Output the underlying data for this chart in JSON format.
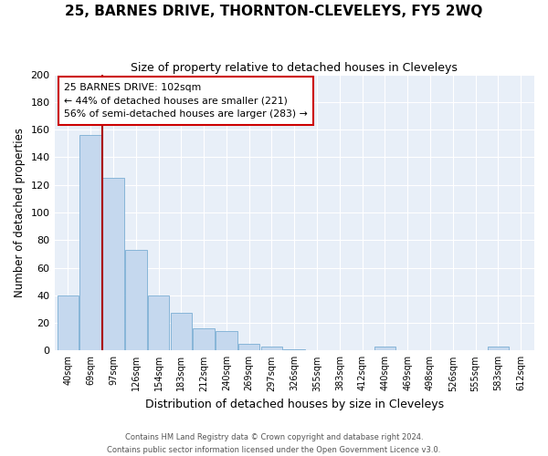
{
  "title": "25, BARNES DRIVE, THORNTON-CLEVELEYS, FY5 2WQ",
  "subtitle": "Size of property relative to detached houses in Cleveleys",
  "xlabel": "Distribution of detached houses by size in Cleveleys",
  "ylabel": "Number of detached properties",
  "bar_color": "#c5d8ee",
  "bar_edge_color": "#7aaed4",
  "background_color": "#ffffff",
  "plot_bg_color": "#e8eff8",
  "grid_color": "#ffffff",
  "categories": [
    "40sqm",
    "69sqm",
    "97sqm",
    "126sqm",
    "154sqm",
    "183sqm",
    "212sqm",
    "240sqm",
    "269sqm",
    "297sqm",
    "326sqm",
    "355sqm",
    "383sqm",
    "412sqm",
    "440sqm",
    "469sqm",
    "498sqm",
    "526sqm",
    "555sqm",
    "583sqm",
    "612sqm"
  ],
  "values": [
    40,
    156,
    125,
    73,
    40,
    27,
    16,
    14,
    5,
    3,
    1,
    0,
    0,
    0,
    3,
    0,
    0,
    0,
    0,
    3,
    0
  ],
  "property_line_x": 1.5,
  "property_line_color": "#aa0000",
  "annotation_text": "25 BARNES DRIVE: 102sqm\n← 44% of detached houses are smaller (221)\n56% of semi-detached houses are larger (283) →",
  "annotation_box_color": "#ffffff",
  "annotation_box_edge": "#cc0000",
  "ylim": [
    0,
    200
  ],
  "yticks": [
    0,
    20,
    40,
    60,
    80,
    100,
    120,
    140,
    160,
    180,
    200
  ],
  "footer_line1": "Contains HM Land Registry data © Crown copyright and database right 2024.",
  "footer_line2": "Contains public sector information licensed under the Open Government Licence v3.0."
}
